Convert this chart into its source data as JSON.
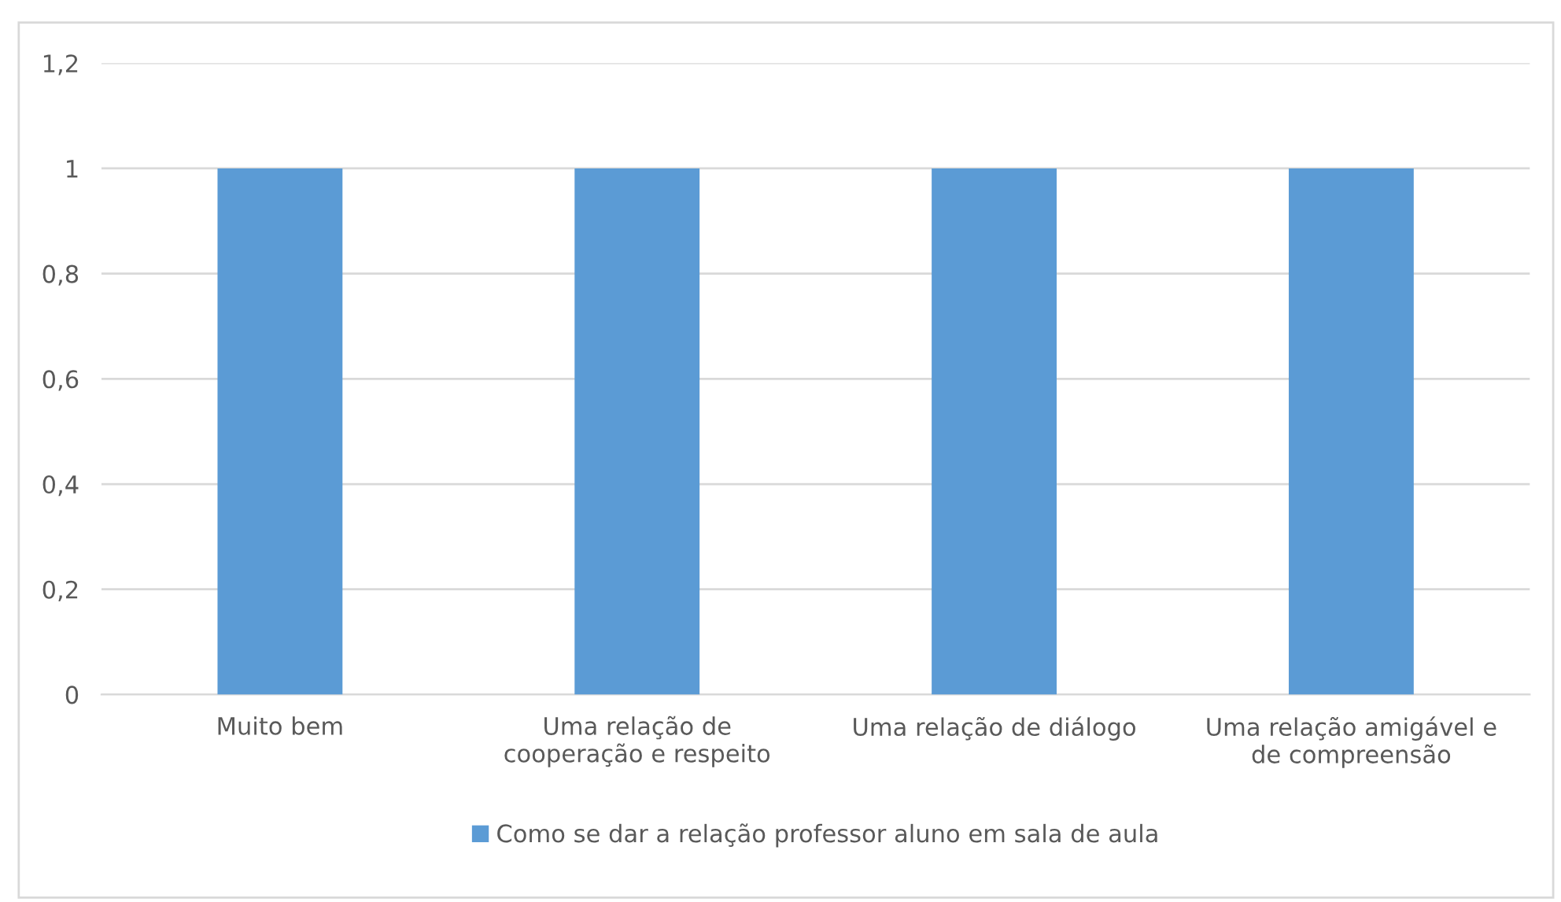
{
  "chart_data": {
    "type": "bar",
    "categories": [
      "Muito bem",
      "Uma relação de\ncooperação e respeito",
      "Uma relação de diálogo",
      "Uma relação amigável e\nde compreensão"
    ],
    "series": [
      {
        "name": "Como se dar a relação professor aluno em sala de aula",
        "color": "#5b9bd5",
        "values": [
          1,
          1,
          1,
          1
        ]
      }
    ],
    "ylim": [
      0,
      1.2
    ],
    "yticks": [
      {
        "value": 0,
        "label": "0"
      },
      {
        "value": 0.2,
        "label": "0,2"
      },
      {
        "value": 0.4,
        "label": "0,4"
      },
      {
        "value": 0.6,
        "label": "0,6"
      },
      {
        "value": 0.8,
        "label": "0,8"
      },
      {
        "value": 1,
        "label": "1"
      },
      {
        "value": 1.2,
        "label": "1,2"
      }
    ],
    "grid": "y",
    "legend": "bottom"
  }
}
